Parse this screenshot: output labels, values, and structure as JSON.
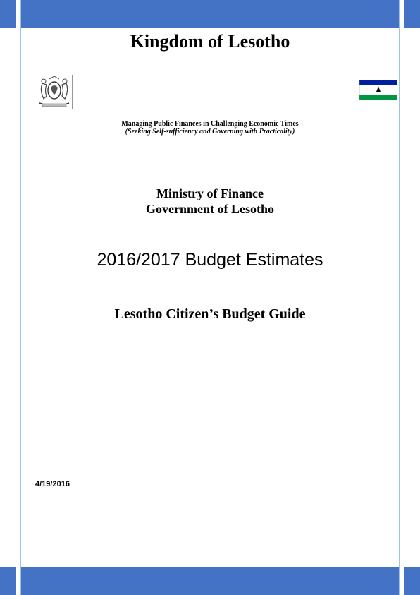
{
  "header": {
    "title": "Kingdom of Lesotho"
  },
  "theme": {
    "band_color": "#4472c4",
    "line_color": "#9dc3e6"
  },
  "emblems": {
    "coat_of_arms": "lesotho-coat-of-arms",
    "flag": "lesotho-flag"
  },
  "theme_line": {
    "main": "Managing Public Finances in Challenging Economic Times",
    "sub": "(Seeking Self-sufficiency and Governing with Practicality)"
  },
  "ministry": {
    "name": "Ministry of Finance",
    "government": "Government of Lesotho"
  },
  "document": {
    "title": "2016/2017 Budget Estimates",
    "subtitle": "Lesotho Citizen’s Budget Guide",
    "date": "4/19/2016"
  }
}
